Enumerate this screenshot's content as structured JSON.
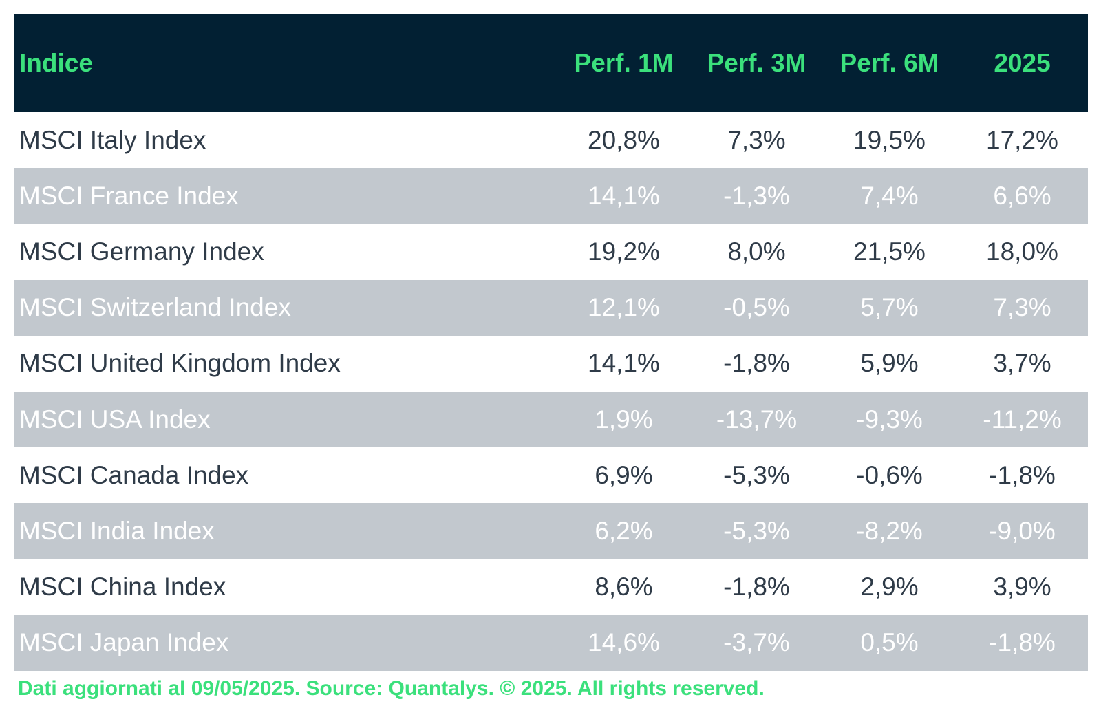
{
  "chart_data": {
    "type": "table",
    "columns": [
      "Indice",
      "Perf. 1M",
      "Perf. 3M",
      "Perf. 6M",
      "2025"
    ],
    "rows": [
      {
        "name": "MSCI Italy Index",
        "values": [
          "20,8%",
          "7,3%",
          "19,5%",
          "17,2%"
        ]
      },
      {
        "name": "MSCI France Index",
        "values": [
          "14,1%",
          "-1,3%",
          "7,4%",
          "6,6%"
        ]
      },
      {
        "name": "MSCI Germany Index",
        "values": [
          "19,2%",
          "8,0%",
          "21,5%",
          "18,0%"
        ]
      },
      {
        "name": "MSCI Switzerland Index",
        "values": [
          "12,1%",
          "-0,5%",
          "5,7%",
          "7,3%"
        ]
      },
      {
        "name": "MSCI United Kingdom Index",
        "values": [
          "14,1%",
          "-1,8%",
          "5,9%",
          "3,7%"
        ]
      },
      {
        "name": "MSCI USA Index",
        "values": [
          "1,9%",
          "-13,7%",
          "-9,3%",
          "-11,2%"
        ]
      },
      {
        "name": "MSCI Canada Index",
        "values": [
          "6,9%",
          "-5,3%",
          "-0,6%",
          "-1,8%"
        ]
      },
      {
        "name": "MSCI India Index",
        "values": [
          "6,2%",
          "-5,3%",
          "-8,2%",
          "-9,0%"
        ]
      },
      {
        "name": "MSCI China Index",
        "values": [
          "8,6%",
          "-1,8%",
          "2,9%",
          "3,9%"
        ]
      },
      {
        "name": "MSCI Japan Index",
        "values": [
          "14,6%",
          "-3,7%",
          "0,5%",
          "-1,8%"
        ]
      }
    ],
    "footnote": "Dati aggiornati al 09/05/2025. Source: Quantalys. © 2025. All rights reserved."
  },
  "colors": {
    "header_background": "#022033",
    "header_text": "#3be07c",
    "row_even_background": "#ffffff",
    "row_odd_background": "#c2c8ce",
    "row_even_text": "#2f3b48",
    "row_odd_text": "#ffffff",
    "footnote_text": "#3be07c"
  }
}
